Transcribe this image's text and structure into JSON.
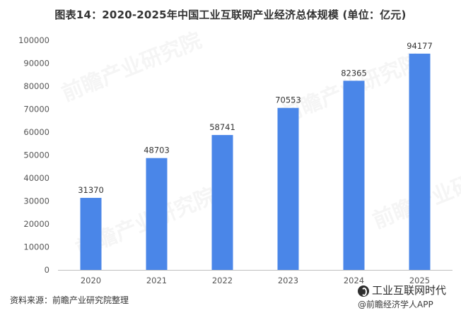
{
  "title": "图表14：2020-2025年中国工业互联网产业经济总体规模 (单位：亿元)",
  "source": "资料来源：前瞻产业研究院整理",
  "watermark": "前瞻产业研究院",
  "brand": {
    "name": "工业互联网时代",
    "sub": "@前瞻经济学人APP"
  },
  "colors": {
    "bar": "#4a86e8",
    "axis": "#bfbfbf",
    "text": "#555555"
  },
  "chart_data": {
    "type": "bar",
    "title": "图表14：2020-2025年中国工业互联网产业经济总体规模 (单位：亿元)",
    "categories": [
      "2020",
      "2021",
      "2022",
      "2023",
      "2024",
      "2025"
    ],
    "values": [
      31370,
      48703,
      58741,
      70553,
      82365,
      94177
    ],
    "yticks": [
      0,
      10000,
      20000,
      30000,
      40000,
      50000,
      60000,
      70000,
      80000,
      90000,
      100000
    ],
    "ylim": [
      0,
      100000
    ],
    "grid": false,
    "legend": "none"
  }
}
